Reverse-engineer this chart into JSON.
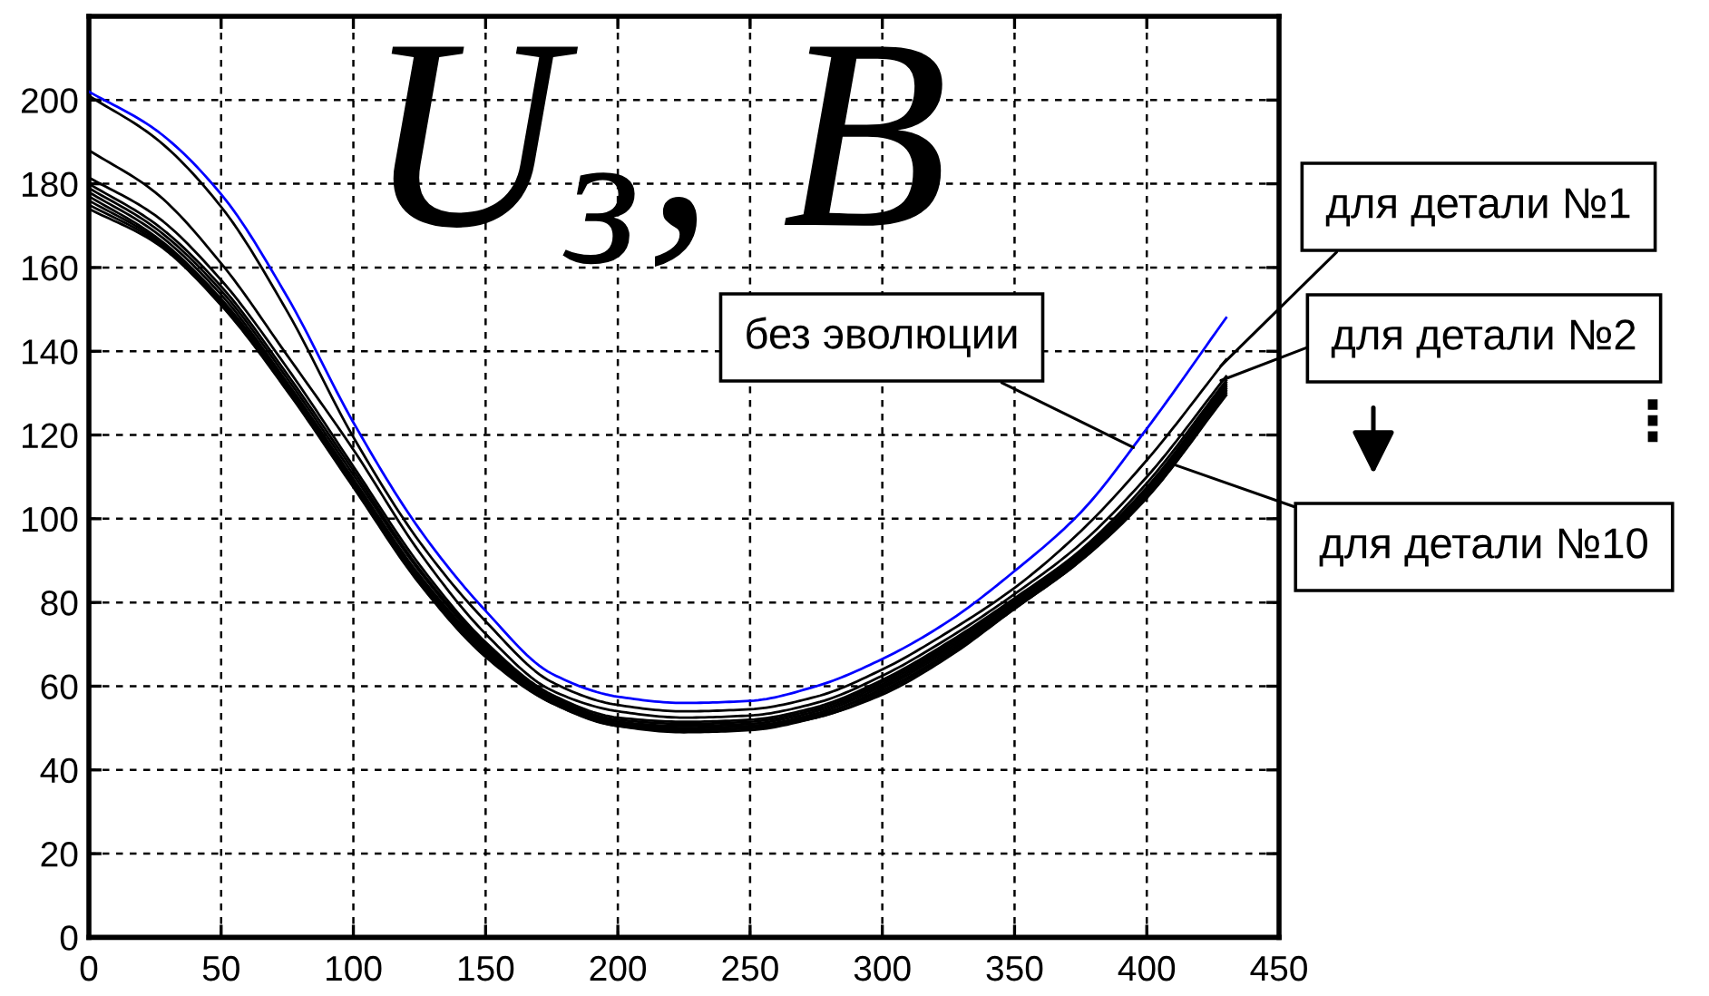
{
  "chart_data": {
    "type": "line",
    "ylabel": "U$_{з}$, В",
    "x": [
      0,
      25,
      50,
      75,
      100,
      125,
      150,
      175,
      200,
      225,
      250,
      275,
      300,
      325,
      350,
      375,
      400,
      430
    ],
    "series": [
      {
        "color": "#0000ff",
        "values": [
          202,
          193,
          177.5,
          153,
          123,
          97.5,
          78,
          63,
          57.5,
          56,
          56.5,
          60,
          66.5,
          75.5,
          87.5,
          101.5,
          121.5,
          148
        ]
      },
      {
        "color": "#000000",
        "values": [
          201,
          191,
          174.5,
          149.5,
          119.5,
          94.5,
          75.5,
          61,
          55.5,
          54,
          54.5,
          57.5,
          64,
          73,
          83.5,
          97,
          114,
          138
        ]
      },
      {
        "color": "#000000",
        "values": [
          188,
          178,
          161,
          139,
          116.5,
          92,
          72.5,
          59,
          54,
          52.5,
          53,
          56,
          62.5,
          71.5,
          82,
          94,
          110,
          134
        ]
      },
      {
        "color": "#000000",
        "values": [
          181.5,
          172.5,
          157,
          136,
          112.5,
          89,
          70.5,
          58,
          52.5,
          51.5,
          52,
          55,
          61.5,
          70.5,
          81,
          92.5,
          108.5,
          133
        ]
      },
      {
        "color": "#000000",
        "values": [
          180,
          170.5,
          155.5,
          134.5,
          111.5,
          88,
          70,
          57.5,
          52,
          51,
          51.5,
          54.5,
          61,
          70,
          80.5,
          92,
          107.5,
          132.5
        ]
      },
      {
        "color": "#000000",
        "values": [
          179,
          169.5,
          154.5,
          133.5,
          110.5,
          87.5,
          69.5,
          57,
          51.5,
          50.5,
          51,
          54,
          60.5,
          69.5,
          80,
          91.5,
          107,
          132
        ]
      },
      {
        "color": "#000000",
        "values": [
          178,
          168.5,
          153.5,
          132.5,
          109.5,
          86.5,
          69,
          57,
          51.5,
          50,
          50.5,
          53.5,
          60,
          69,
          79.5,
          91,
          106.5,
          131.5
        ]
      },
      {
        "color": "#000000",
        "values": [
          177,
          167.5,
          152.5,
          132,
          109,
          86,
          68.5,
          56.5,
          51,
          50,
          50.5,
          53,
          59.5,
          68.5,
          79,
          90.5,
          106,
          131
        ]
      },
      {
        "color": "#000000",
        "values": [
          176,
          167,
          152,
          131.5,
          108.5,
          85.5,
          68,
          56.5,
          51,
          49.5,
          50,
          53,
          59,
          68,
          79,
          90.5,
          105.5,
          130.5
        ]
      },
      {
        "color": "#000000",
        "values": [
          175,
          166.5,
          151.5,
          131,
          108,
          85,
          67.5,
          56,
          50.5,
          49.5,
          50,
          52.5,
          58.5,
          67.5,
          78.5,
          90,
          105,
          130
        ]
      },
      {
        "color": "#000000",
        "values": [
          174,
          166,
          151,
          130.5,
          107.5,
          84.5,
          67,
          56,
          50.5,
          49,
          49.5,
          52.5,
          58,
          67,
          78.5,
          90,
          105,
          129.5
        ]
      }
    ],
    "xlim": [
      0,
      450
    ],
    "ylim": [
      0,
      220
    ],
    "xticks": [
      0,
      50,
      100,
      150,
      200,
      250,
      300,
      350,
      400,
      450
    ],
    "yticks": [
      0,
      20,
      40,
      60,
      80,
      100,
      120,
      140,
      160,
      180,
      200
    ],
    "grid": true,
    "line_style": "solid",
    "annotations": [
      {
        "text": "без эволюции",
        "x": 395,
        "y": 117
      },
      {
        "text": "для детали №1",
        "x": 428,
        "y": 136.5
      },
      {
        "text": "для детали №2",
        "x": 428,
        "y": 133
      },
      {
        "text": "для детали №10",
        "x": 410,
        "y": 113
      },
      "⋮"
    ]
  }
}
